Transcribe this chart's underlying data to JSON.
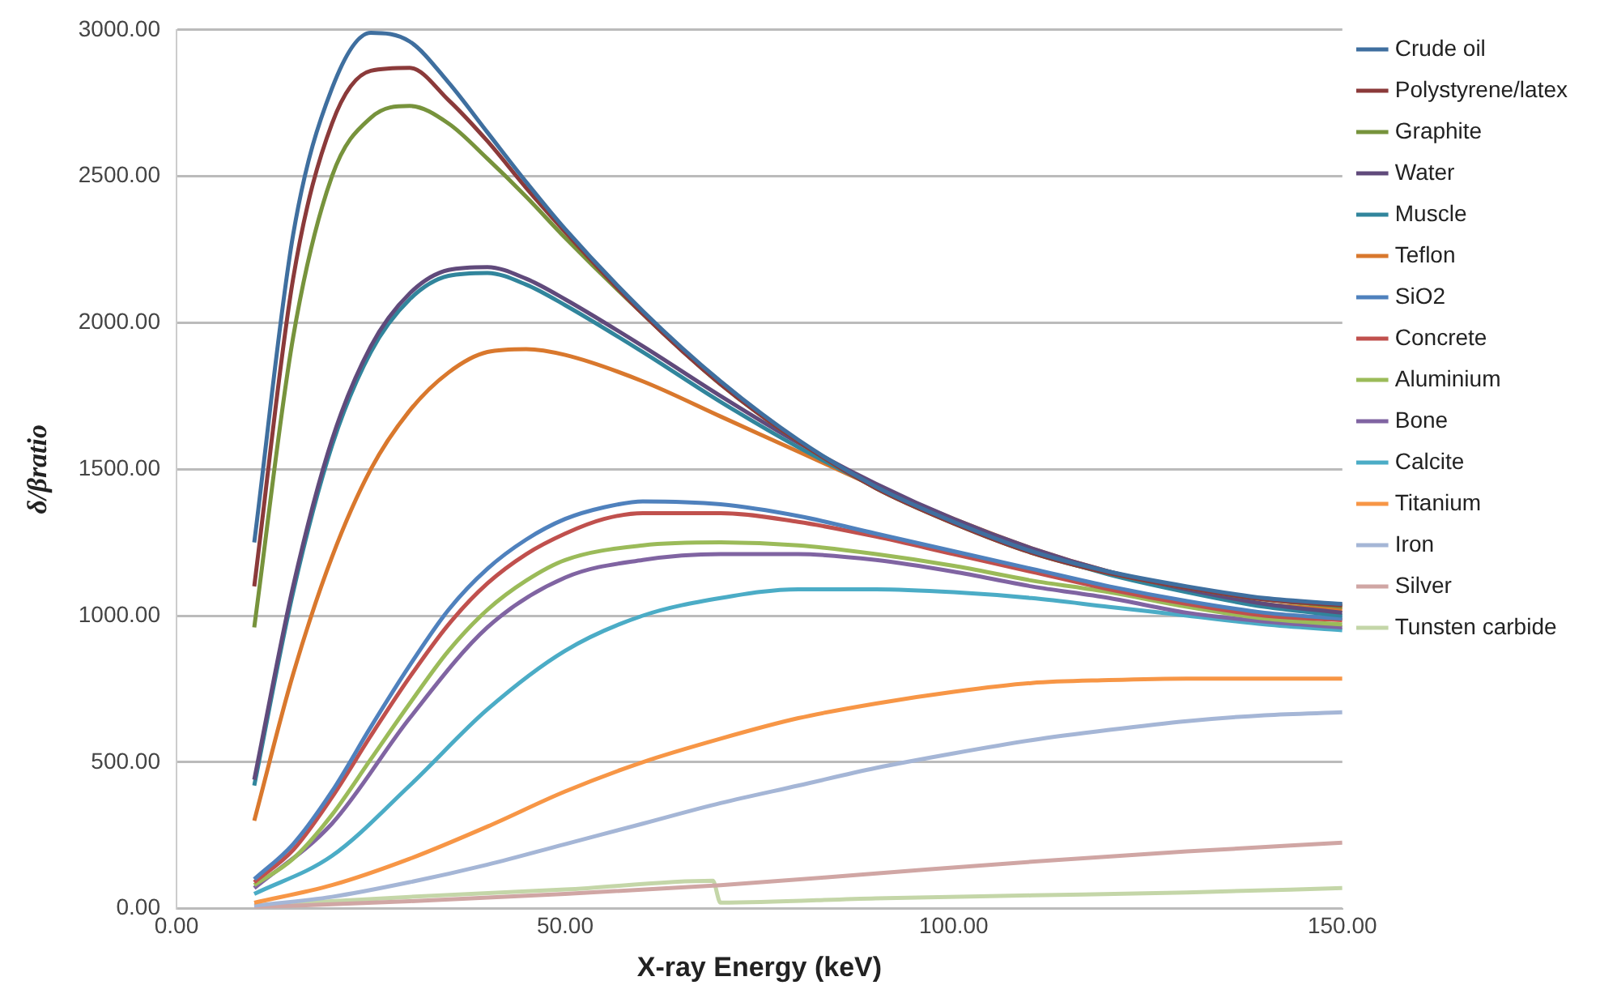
{
  "chart_data": {
    "type": "line",
    "xlabel": "X-ray Energy (keV)",
    "ylabel": "δ/βratio",
    "xlim": [
      0,
      150
    ],
    "xticks": [
      {
        "value": 0,
        "label": "0.00"
      },
      {
        "value": 50,
        "label": "50.00"
      },
      {
        "value": 100,
        "label": "100.00"
      },
      {
        "value": 150,
        "label": "150.00"
      }
    ],
    "ylim": [
      0,
      3000
    ],
    "yticks": [
      {
        "value": 0,
        "label": "0.00"
      },
      {
        "value": 500,
        "label": "500.00"
      },
      {
        "value": 1000,
        "label": "1000.00"
      },
      {
        "value": 1500,
        "label": "1500.00"
      },
      {
        "value": 2000,
        "label": "2000.00"
      },
      {
        "value": 2500,
        "label": "2500.00"
      },
      {
        "value": 3000,
        "label": "3000.00"
      }
    ],
    "grid": "y",
    "legend": "right",
    "marker": "none",
    "line_style": "solid",
    "series": [
      {
        "name": "Crude oil",
        "color": "#3f6f9f",
        "x": [
          10,
          15,
          20,
          25,
          30,
          35,
          40,
          45,
          50,
          60,
          70,
          80,
          90,
          100,
          110,
          120,
          130,
          140,
          150
        ],
        "values": [
          1250,
          2300,
          2800,
          2990,
          2960,
          2820,
          2650,
          2480,
          2320,
          2040,
          1800,
          1600,
          1440,
          1320,
          1220,
          1150,
          1100,
          1060,
          1040
        ]
      },
      {
        "name": "Polystyrene/latex",
        "color": "#8b3a3a",
        "x": [
          10,
          15,
          20,
          25,
          30,
          35,
          40,
          45,
          50,
          60,
          70,
          80,
          90,
          100,
          110,
          120,
          130,
          140,
          150
        ],
        "values": [
          1100,
          2150,
          2680,
          2860,
          2870,
          2760,
          2620,
          2460,
          2310,
          2030,
          1790,
          1595,
          1435,
          1315,
          1215,
          1145,
          1095,
          1055,
          1035
        ]
      },
      {
        "name": "Graphite",
        "color": "#77933c",
        "x": [
          10,
          15,
          20,
          25,
          30,
          35,
          40,
          45,
          50,
          60,
          70,
          80,
          90,
          100,
          110,
          120,
          130,
          140,
          150
        ],
        "values": [
          960,
          1950,
          2500,
          2700,
          2740,
          2680,
          2560,
          2430,
          2290,
          2030,
          1790,
          1595,
          1435,
          1315,
          1215,
          1145,
          1095,
          1055,
          1030
        ]
      },
      {
        "name": "Water",
        "color": "#604a7b",
        "x": [
          10,
          15,
          20,
          25,
          30,
          35,
          40,
          45,
          50,
          60,
          70,
          80,
          90,
          100,
          110,
          120,
          130,
          140,
          150
        ],
        "values": [
          440,
          1100,
          1600,
          1920,
          2100,
          2180,
          2190,
          2150,
          2080,
          1920,
          1750,
          1590,
          1450,
          1330,
          1230,
          1150,
          1090,
          1040,
          1010
        ]
      },
      {
        "name": "Muscle",
        "color": "#31859c",
        "x": [
          10,
          15,
          20,
          25,
          30,
          35,
          40,
          45,
          50,
          60,
          70,
          80,
          90,
          100,
          110,
          120,
          130,
          140,
          150
        ],
        "values": [
          420,
          1080,
          1580,
          1900,
          2080,
          2160,
          2170,
          2130,
          2060,
          1900,
          1730,
          1575,
          1440,
          1320,
          1220,
          1140,
          1080,
          1030,
          1000
        ]
      },
      {
        "name": "Teflon",
        "color": "#d9782d",
        "x": [
          10,
          15,
          20,
          25,
          30,
          35,
          40,
          45,
          50,
          60,
          70,
          80,
          90,
          100,
          110,
          120,
          130,
          140,
          150
        ],
        "values": [
          300,
          800,
          1200,
          1500,
          1700,
          1830,
          1900,
          1910,
          1890,
          1800,
          1680,
          1560,
          1440,
          1330,
          1230,
          1150,
          1090,
          1040,
          1020
        ]
      },
      {
        "name": "SiO2",
        "color": "#4f81bd",
        "x": [
          10,
          15,
          20,
          25,
          30,
          35,
          40,
          45,
          50,
          55,
          60,
          70,
          80,
          90,
          100,
          110,
          120,
          130,
          140,
          150
        ],
        "values": [
          100,
          220,
          400,
          620,
          830,
          1020,
          1160,
          1260,
          1330,
          1370,
          1390,
          1380,
          1340,
          1280,
          1220,
          1160,
          1100,
          1050,
          1010,
          990
        ]
      },
      {
        "name": "Concrete",
        "color": "#c0504d",
        "x": [
          10,
          15,
          20,
          25,
          30,
          35,
          40,
          45,
          50,
          55,
          60,
          70,
          80,
          90,
          100,
          110,
          120,
          130,
          140,
          150
        ],
        "values": [
          90,
          200,
          380,
          590,
          790,
          970,
          1110,
          1210,
          1280,
          1330,
          1350,
          1350,
          1320,
          1270,
          1210,
          1150,
          1090,
          1040,
          1000,
          985
        ]
      },
      {
        "name": "Aluminium",
        "color": "#9bbb59",
        "x": [
          10,
          15,
          20,
          25,
          30,
          35,
          40,
          45,
          50,
          60,
          70,
          80,
          90,
          100,
          110,
          120,
          130,
          140,
          150
        ],
        "values": [
          80,
          170,
          320,
          510,
          700,
          880,
          1020,
          1120,
          1190,
          1240,
          1250,
          1240,
          1210,
          1170,
          1120,
          1080,
          1030,
          990,
          970
        ]
      },
      {
        "name": "Bone",
        "color": "#8064a2",
        "x": [
          10,
          20,
          30,
          40,
          50,
          60,
          70,
          80,
          90,
          100,
          110,
          120,
          130,
          140,
          150
        ],
        "values": [
          70,
          290,
          650,
          960,
          1130,
          1190,
          1210,
          1210,
          1190,
          1150,
          1100,
          1060,
          1010,
          980,
          960
        ]
      },
      {
        "name": "Calcite",
        "color": "#4bacc6",
        "x": [
          10,
          20,
          30,
          40,
          50,
          60,
          70,
          80,
          90,
          100,
          110,
          120,
          130,
          140,
          150
        ],
        "values": [
          50,
          180,
          420,
          680,
          880,
          1000,
          1060,
          1090,
          1090,
          1080,
          1060,
          1030,
          1000,
          970,
          950
        ]
      },
      {
        "name": "Titanium",
        "color": "#f79646",
        "x": [
          10,
          20,
          30,
          40,
          50,
          60,
          70,
          80,
          90,
          100,
          110,
          120,
          130,
          140,
          150
        ],
        "values": [
          20,
          80,
          170,
          280,
          400,
          500,
          580,
          650,
          700,
          740,
          770,
          780,
          785,
          785,
          785
        ]
      },
      {
        "name": "Iron",
        "color": "#a5b6d6",
        "x": [
          10,
          20,
          30,
          40,
          50,
          60,
          70,
          80,
          90,
          100,
          110,
          120,
          130,
          140,
          150
        ],
        "values": [
          10,
          40,
          90,
          150,
          220,
          290,
          360,
          420,
          480,
          530,
          575,
          610,
          640,
          660,
          670
        ]
      },
      {
        "name": "Silver",
        "color": "#d0a6a4",
        "x": [
          10,
          30,
          50,
          70,
          90,
          110,
          130,
          150
        ],
        "values": [
          5,
          25,
          50,
          80,
          120,
          160,
          195,
          225
        ]
      },
      {
        "name": "Tunsten carbide",
        "color": "#c4d6a8",
        "x": [
          10,
          30,
          50,
          69,
          70,
          90,
          110,
          130,
          150
        ],
        "values": [
          10,
          40,
          65,
          95,
          20,
          35,
          45,
          55,
          70
        ]
      }
    ]
  }
}
